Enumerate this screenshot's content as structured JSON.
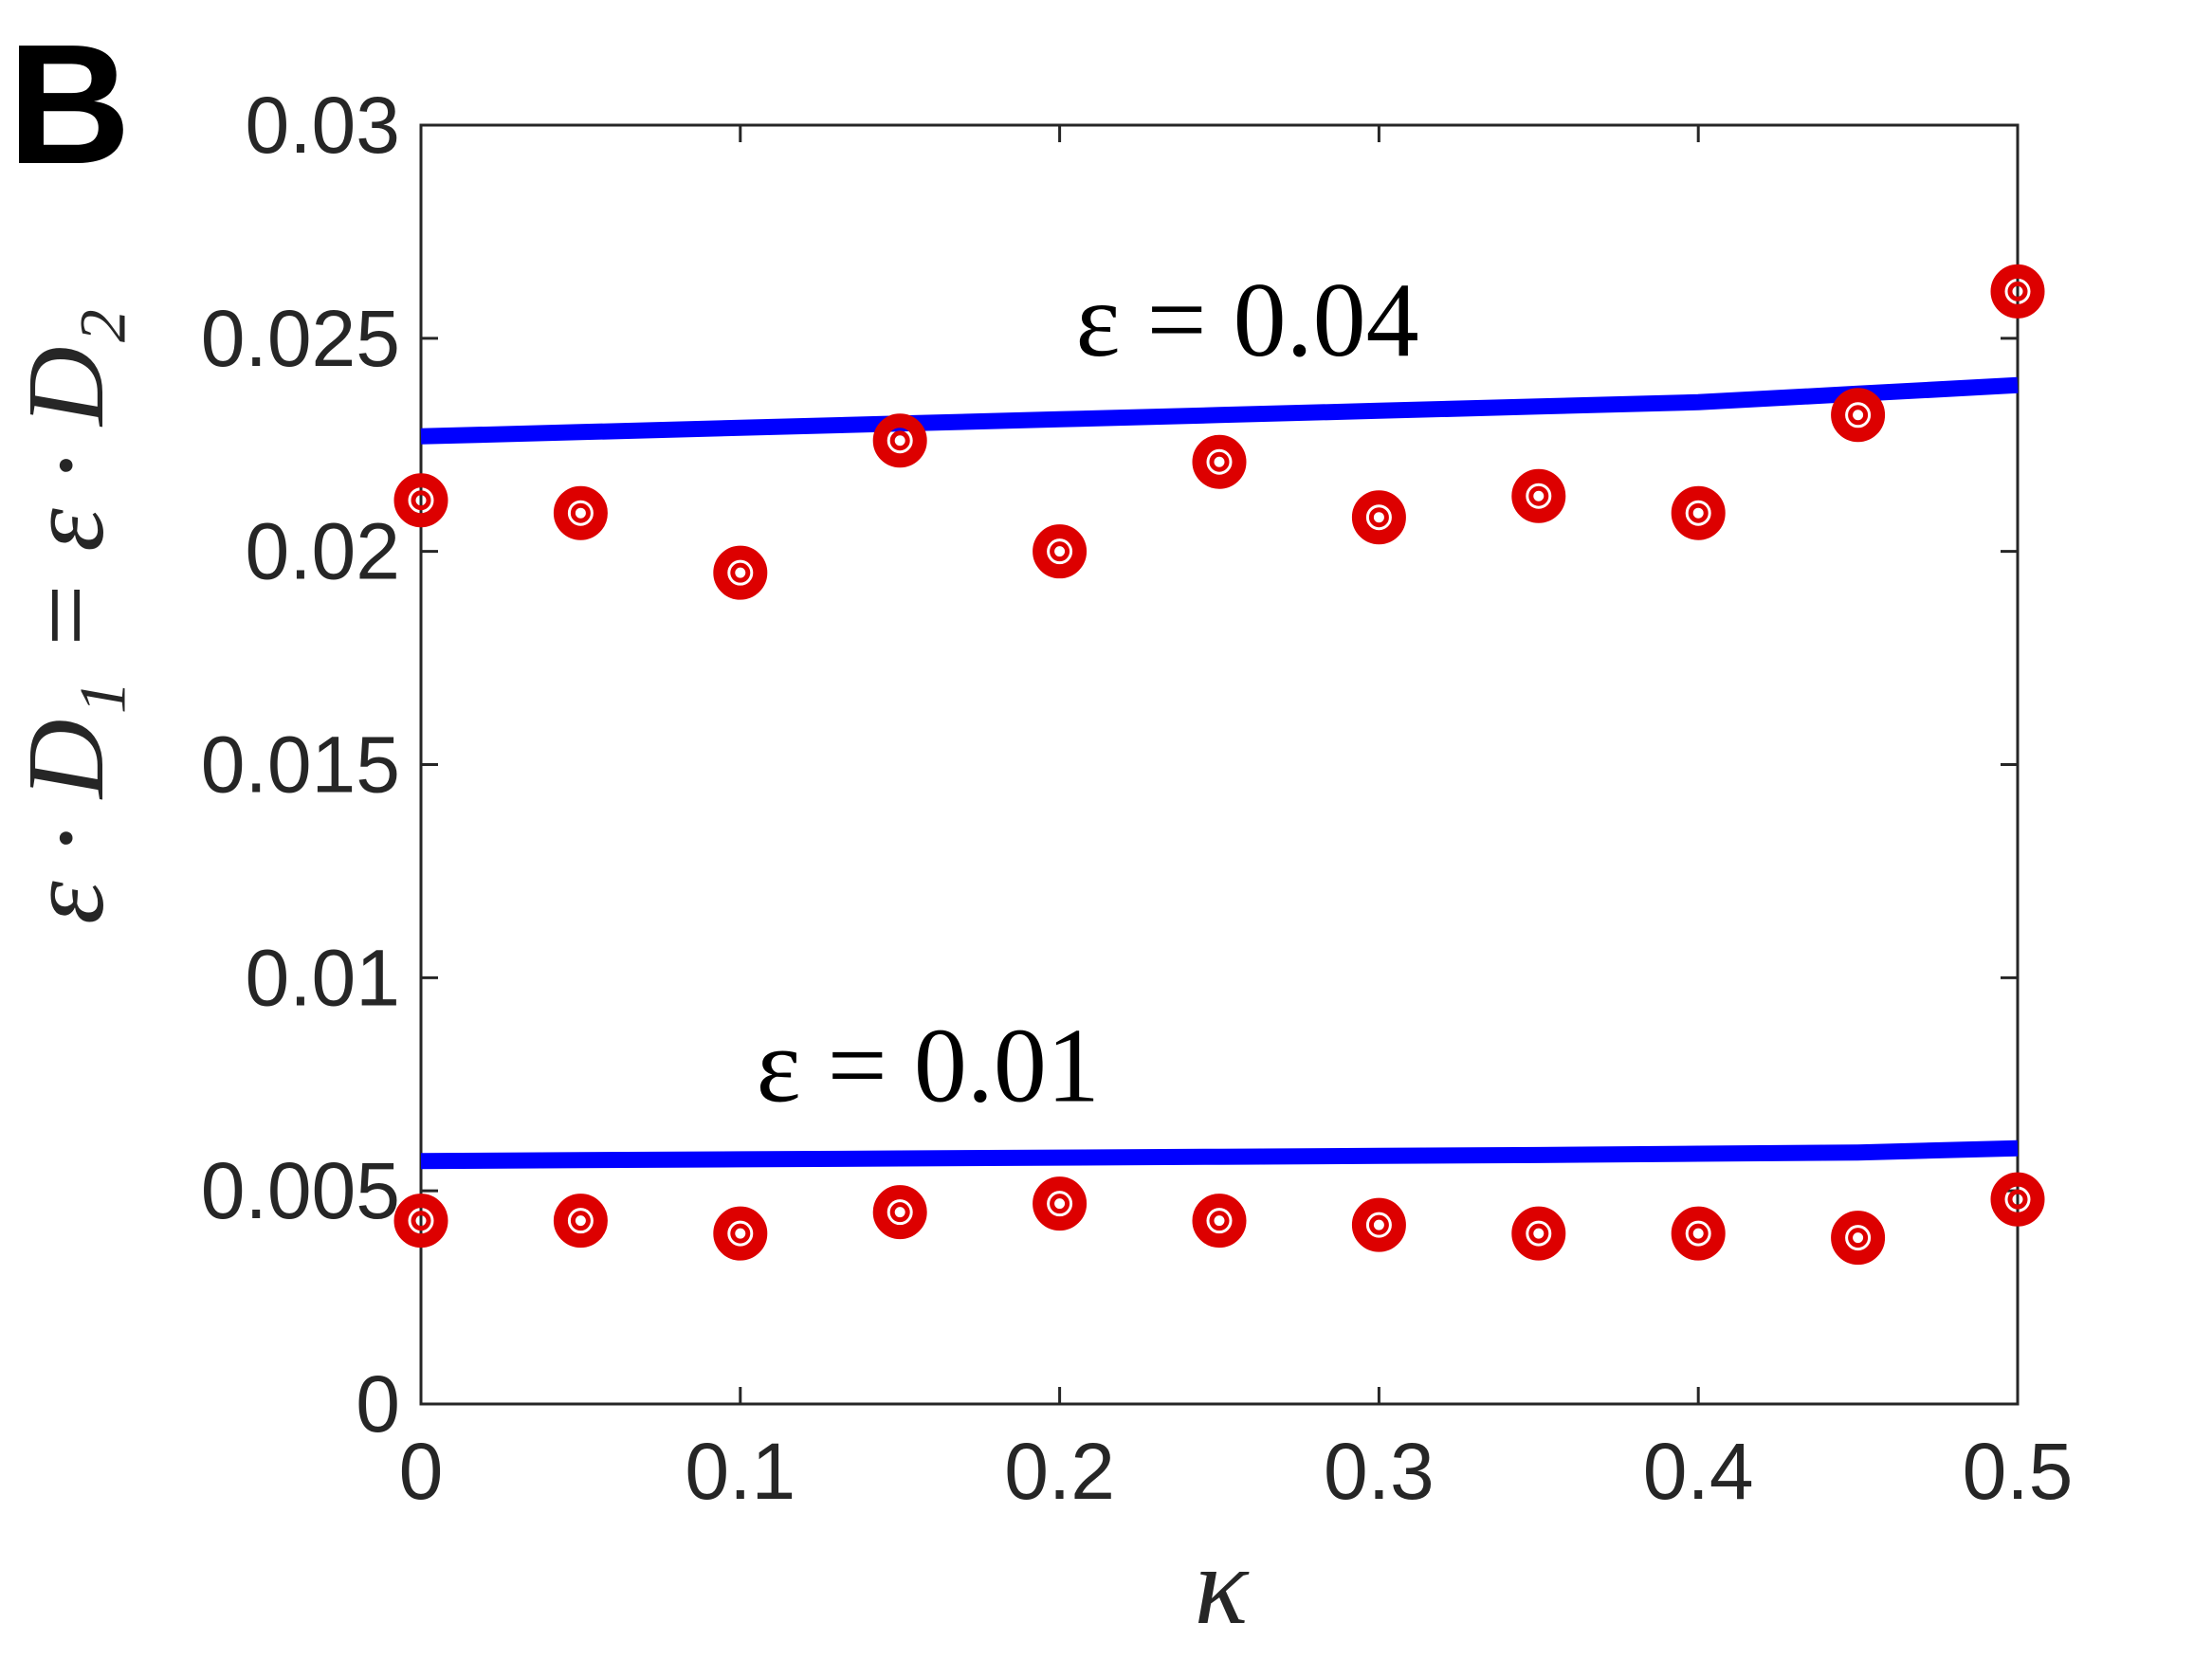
{
  "panel_label": "B",
  "chart_data": {
    "type": "line",
    "title": "",
    "xlabel": "κ",
    "ylabel": "ε · D₁ = ε · D₂",
    "xlim": [
      0,
      0.5
    ],
    "ylim": [
      0,
      0.03
    ],
    "xticks": [
      0,
      0.1,
      0.2,
      0.3,
      0.4,
      0.5
    ],
    "xtick_labels": [
      "0",
      "0.1",
      "0.2",
      "0.3",
      "0.4",
      "0.5"
    ],
    "yticks": [
      0,
      0.005,
      0.01,
      0.015,
      0.02,
      0.025,
      0.03
    ],
    "ytick_labels": [
      "0",
      "0.005",
      "0.01",
      "0.015",
      "0.02",
      "0.025",
      "0.03"
    ],
    "grid": false,
    "box": true,
    "series": [
      {
        "kind": "line",
        "color": "#0000ff",
        "x": [
          0,
          0.05,
          0.1,
          0.15,
          0.2,
          0.25,
          0.3,
          0.35,
          0.4,
          0.45,
          0.5
        ],
        "y": [
          0.0227,
          0.0228,
          0.0229,
          0.023,
          0.0231,
          0.0232,
          0.0233,
          0.0234,
          0.0235,
          0.0237,
          0.0239
        ]
      },
      {
        "kind": "markers",
        "color": "#dd0000",
        "marker": "circle",
        "x": [
          0,
          0.05,
          0.1,
          0.15,
          0.2,
          0.25,
          0.3,
          0.35,
          0.4,
          0.45,
          0.5
        ],
        "y": [
          0.0212,
          0.0209,
          0.0195,
          0.0226,
          0.02,
          0.0221,
          0.0208,
          0.0213,
          0.0209,
          0.0232,
          0.0261
        ]
      },
      {
        "kind": "line",
        "color": "#0000ff",
        "x": [
          0,
          0.05,
          0.1,
          0.15,
          0.2,
          0.25,
          0.3,
          0.35,
          0.4,
          0.45,
          0.5
        ],
        "y": [
          0.0057,
          0.00572,
          0.00574,
          0.00576,
          0.00578,
          0.0058,
          0.00582,
          0.00584,
          0.00587,
          0.0059,
          0.006
        ]
      },
      {
        "kind": "markers",
        "color": "#dd0000",
        "marker": "circle",
        "x": [
          0,
          0.05,
          0.1,
          0.15,
          0.2,
          0.25,
          0.3,
          0.35,
          0.4,
          0.45,
          0.5
        ],
        "y": [
          0.0043,
          0.0043,
          0.004,
          0.0045,
          0.0047,
          0.0043,
          0.0042,
          0.004,
          0.004,
          0.0039,
          0.0048
        ]
      }
    ],
    "annotations": [
      {
        "text": "ε = 0.04",
        "x": 0.205,
        "y": 0.0246
      },
      {
        "text": "ε = 0.01",
        "x": 0.105,
        "y": 0.0071
      }
    ]
  }
}
